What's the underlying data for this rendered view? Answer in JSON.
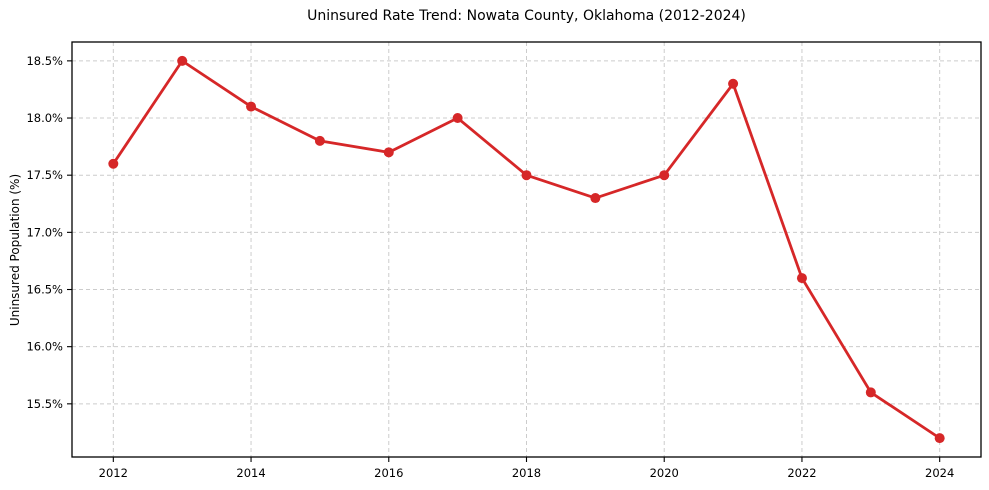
{
  "chart_data": {
    "type": "line",
    "title": "Uninsured Rate Trend: Nowata County, Oklahoma (2012-2024)",
    "xlabel": "",
    "ylabel": "Uninsured Population (%)",
    "x": [
      2012,
      2013,
      2014,
      2015,
      2016,
      2017,
      2018,
      2019,
      2020,
      2021,
      2022,
      2023,
      2024
    ],
    "values": [
      17.6,
      18.5,
      18.1,
      17.8,
      17.7,
      18.0,
      17.5,
      17.3,
      17.5,
      18.3,
      16.6,
      15.6,
      15.2
    ],
    "x_tick_labels": [
      "2012",
      "2014",
      "2016",
      "2018",
      "2020",
      "2022",
      "2024"
    ],
    "x_tick_values": [
      2012,
      2014,
      2016,
      2018,
      2020,
      2022,
      2024
    ],
    "y_tick_labels": [
      "15.5%",
      "16.0%",
      "16.5%",
      "17.0%",
      "17.5%",
      "18.0%",
      "18.5%"
    ],
    "y_tick_values": [
      15.5,
      16.0,
      16.5,
      17.0,
      17.5,
      18.0,
      18.5
    ],
    "xlim": [
      2011.4,
      2024.6
    ],
    "ylim": [
      15.035,
      18.665
    ],
    "grid": true,
    "grid_style": "dashed",
    "legend_position": "none",
    "line_color": "#d62728",
    "grid_color": "#cccccc",
    "frame_color": "#000000",
    "marker": "circle"
  }
}
